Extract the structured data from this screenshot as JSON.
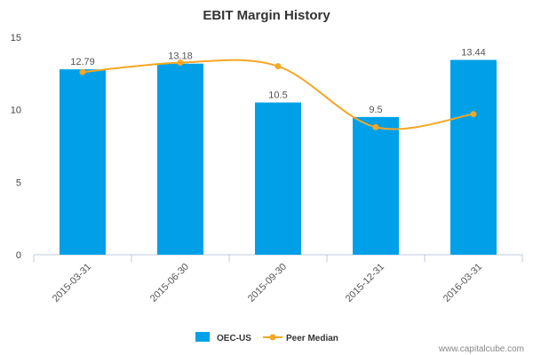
{
  "chart_data": {
    "type": "bar",
    "title": "EBIT Margin History",
    "categories": [
      "2015-03-31",
      "2015-06-30",
      "2015-09-30",
      "2015-12-31",
      "2016-03-31"
    ],
    "series": [
      {
        "name": "OEC-US",
        "type": "bar",
        "values": [
          12.79,
          13.18,
          10.5,
          9.5,
          13.44
        ],
        "color": "#00A0E9"
      },
      {
        "name": "Peer Median",
        "type": "line",
        "values": [
          12.6,
          13.25,
          13.0,
          8.8,
          9.7
        ],
        "color": "#F5A623"
      }
    ],
    "data_labels": [
      "12.79",
      "13.18",
      "10.5",
      "9.5",
      "13.44"
    ],
    "yticks": [
      "0",
      "5",
      "10",
      "15"
    ],
    "ylim": [
      0,
      15
    ],
    "legend_position": "bottom-center",
    "grid": false
  },
  "credit": "www.capitalcube.com"
}
